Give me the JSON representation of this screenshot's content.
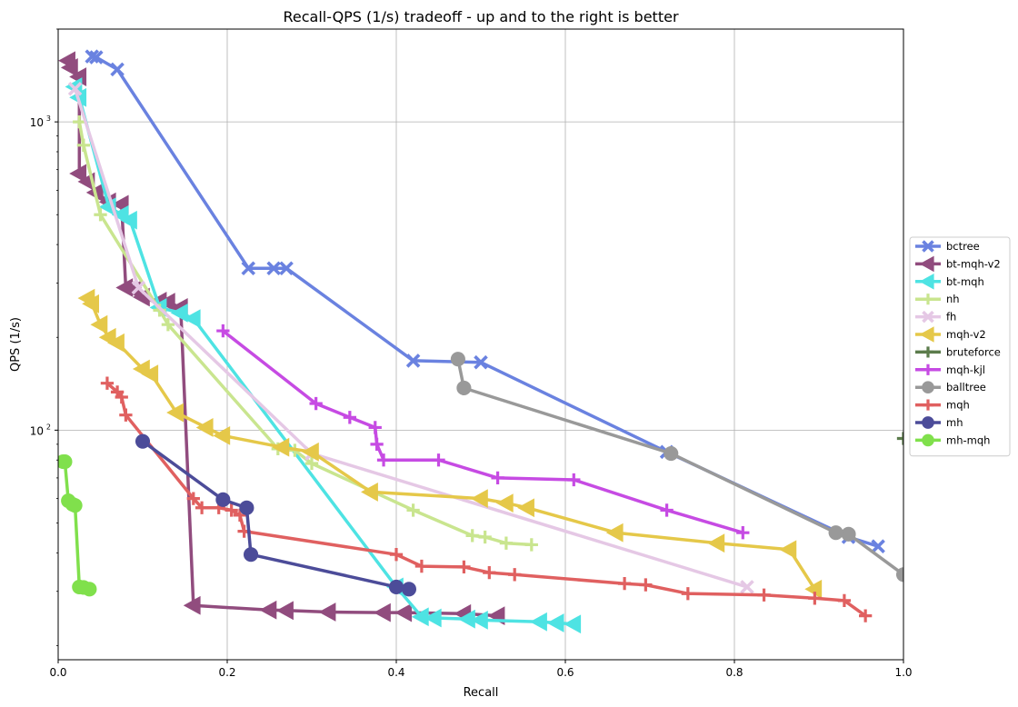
{
  "chart_data": {
    "type": "line",
    "title": "Recall-QPS (1/s) tradeoff - up and to the right is better",
    "xlabel": "Recall",
    "ylabel": "QPS (1/s)",
    "xlim": [
      0,
      1
    ],
    "ylim": [
      18,
      2000
    ],
    "yscale": "log",
    "grid": true,
    "legend_position": "center-right",
    "x_ticks": [
      {
        "value": 0.0,
        "label": "0.0"
      },
      {
        "value": 0.2,
        "label": "0.2"
      },
      {
        "value": 0.4,
        "label": "0.4"
      },
      {
        "value": 0.6,
        "label": "0.6"
      },
      {
        "value": 0.8,
        "label": "0.8"
      },
      {
        "value": 1.0,
        "label": "1.0"
      }
    ],
    "y_ticks": [
      {
        "value": 100,
        "label": "10",
        "sup": "2"
      },
      {
        "value": 1000,
        "label": "10",
        "sup": "3"
      }
    ],
    "series": [
      {
        "name": "bctree",
        "color": "#6a82e0",
        "marker": "x",
        "points": [
          [
            0.97,
            42
          ],
          [
            0.935,
            45
          ],
          [
            0.72,
            85
          ],
          [
            0.5,
            166
          ],
          [
            0.42,
            168
          ],
          [
            0.27,
            335
          ],
          [
            0.255,
            335
          ],
          [
            0.225,
            335
          ],
          [
            0.07,
            1480
          ],
          [
            0.045,
            1620
          ],
          [
            0.04,
            1630
          ]
        ]
      },
      {
        "name": "bt-mqh-v2",
        "color": "#914c7e",
        "marker": "tri-left",
        "points": [
          [
            0.52,
            25
          ],
          [
            0.48,
            25.4
          ],
          [
            0.41,
            25.6
          ],
          [
            0.385,
            25.6
          ],
          [
            0.32,
            25.7
          ],
          [
            0.27,
            26
          ],
          [
            0.25,
            26.1
          ],
          [
            0.16,
            27
          ],
          [
            0.145,
            250
          ],
          [
            0.13,
            260
          ],
          [
            0.12,
            262
          ],
          [
            0.1,
            270
          ],
          [
            0.09,
            285
          ],
          [
            0.08,
            290
          ],
          [
            0.075,
            540
          ],
          [
            0.06,
            550
          ],
          [
            0.045,
            590
          ],
          [
            0.035,
            640
          ],
          [
            0.025,
            680
          ],
          [
            0.025,
            1400
          ],
          [
            0.015,
            1500
          ],
          [
            0.012,
            1580
          ]
        ]
      },
      {
        "name": "bt-mqh",
        "color": "#4ee3e3",
        "marker": "tri-left",
        "points": [
          [
            0.61,
            23.5
          ],
          [
            0.59,
            23.7
          ],
          [
            0.57,
            23.9
          ],
          [
            0.5,
            24.2
          ],
          [
            0.485,
            24.4
          ],
          [
            0.445,
            24.6
          ],
          [
            0.43,
            24.8
          ],
          [
            0.4,
            31
          ],
          [
            0.16,
            230
          ],
          [
            0.145,
            240
          ],
          [
            0.12,
            250
          ],
          [
            0.085,
            480
          ],
          [
            0.075,
            500
          ],
          [
            0.06,
            530
          ],
          [
            0.025,
            1200
          ],
          [
            0.02,
            1300
          ]
        ]
      },
      {
        "name": "nh",
        "color": "#c9e58f",
        "marker": "plus",
        "points": [
          [
            0.56,
            42.5
          ],
          [
            0.53,
            43
          ],
          [
            0.505,
            45
          ],
          [
            0.49,
            45.5
          ],
          [
            0.42,
            55
          ],
          [
            0.3,
            78
          ],
          [
            0.28,
            86
          ],
          [
            0.26,
            87
          ],
          [
            0.13,
            220
          ],
          [
            0.12,
            245
          ],
          [
            0.05,
            500
          ],
          [
            0.03,
            840
          ],
          [
            0.025,
            1000
          ]
        ]
      },
      {
        "name": "fh",
        "color": "#e5c8e5",
        "marker": "x",
        "points": [
          [
            0.815,
            31
          ],
          [
            0.3,
            84
          ],
          [
            0.095,
            290
          ],
          [
            0.02,
            1280
          ]
        ]
      },
      {
        "name": "mqh-v2",
        "color": "#e5c849",
        "marker": "tri-left",
        "points": [
          [
            0.895,
            30.5
          ],
          [
            0.865,
            41
          ],
          [
            0.78,
            43
          ],
          [
            0.66,
            46.5
          ],
          [
            0.555,
            56
          ],
          [
            0.53,
            58
          ],
          [
            0.5,
            60
          ],
          [
            0.37,
            63
          ],
          [
            0.3,
            85
          ],
          [
            0.265,
            88
          ],
          [
            0.195,
            96
          ],
          [
            0.175,
            102
          ],
          [
            0.14,
            114
          ],
          [
            0.11,
            152
          ],
          [
            0.1,
            158
          ],
          [
            0.07,
            192
          ],
          [
            0.06,
            200
          ],
          [
            0.05,
            220
          ],
          [
            0.04,
            257
          ],
          [
            0.035,
            268
          ]
        ]
      },
      {
        "name": "bruteforce",
        "color": "#5c7c4c",
        "marker": "plus",
        "points": [
          [
            1.0,
            94
          ]
        ]
      },
      {
        "name": "mqh-kjl",
        "color": "#c64be3",
        "marker": "plus",
        "points": [
          [
            0.81,
            46.5
          ],
          [
            0.72,
            55
          ],
          [
            0.61,
            69
          ],
          [
            0.52,
            70
          ],
          [
            0.45,
            80
          ],
          [
            0.385,
            80
          ],
          [
            0.377,
            90
          ],
          [
            0.375,
            102
          ],
          [
            0.345,
            110
          ],
          [
            0.305,
            122
          ],
          [
            0.195,
            210
          ]
        ]
      },
      {
        "name": "balltree",
        "color": "#999999",
        "marker": "circle",
        "points": [
          [
            1.0,
            34
          ],
          [
            0.935,
            46
          ],
          [
            0.92,
            46.5
          ],
          [
            0.725,
            84
          ],
          [
            0.48,
            137
          ],
          [
            0.473,
            170
          ]
        ]
      },
      {
        "name": "mqh",
        "color": "#e06060",
        "marker": "plus",
        "points": [
          [
            0.955,
            25
          ],
          [
            0.93,
            28
          ],
          [
            0.895,
            28.5
          ],
          [
            0.835,
            29.2
          ],
          [
            0.745,
            29.5
          ],
          [
            0.695,
            31.5
          ],
          [
            0.67,
            31.8
          ],
          [
            0.54,
            34
          ],
          [
            0.51,
            34.5
          ],
          [
            0.48,
            36
          ],
          [
            0.43,
            36.2
          ],
          [
            0.4,
            39.5
          ],
          [
            0.22,
            47
          ],
          [
            0.215,
            53
          ],
          [
            0.205,
            55
          ],
          [
            0.19,
            56
          ],
          [
            0.17,
            56
          ],
          [
            0.16,
            60
          ],
          [
            0.08,
            112
          ],
          [
            0.075,
            128
          ],
          [
            0.07,
            133
          ],
          [
            0.058,
            142
          ]
        ]
      },
      {
        "name": "mh",
        "color": "#4c4c99",
        "marker": "circle",
        "points": [
          [
            0.415,
            30.5
          ],
          [
            0.4,
            31
          ],
          [
            0.228,
            39.5
          ],
          [
            0.223,
            56
          ],
          [
            0.195,
            59.5
          ],
          [
            0.1,
            92
          ]
        ]
      },
      {
        "name": "mh-mqh",
        "color": "#80e04c",
        "marker": "circle",
        "points": [
          [
            0.037,
            30.5
          ],
          [
            0.03,
            30.9
          ],
          [
            0.025,
            31
          ],
          [
            0.02,
            57
          ],
          [
            0.017,
            57.5
          ],
          [
            0.012,
            59
          ],
          [
            0.008,
            79
          ],
          [
            0.006,
            79
          ]
        ]
      }
    ]
  }
}
